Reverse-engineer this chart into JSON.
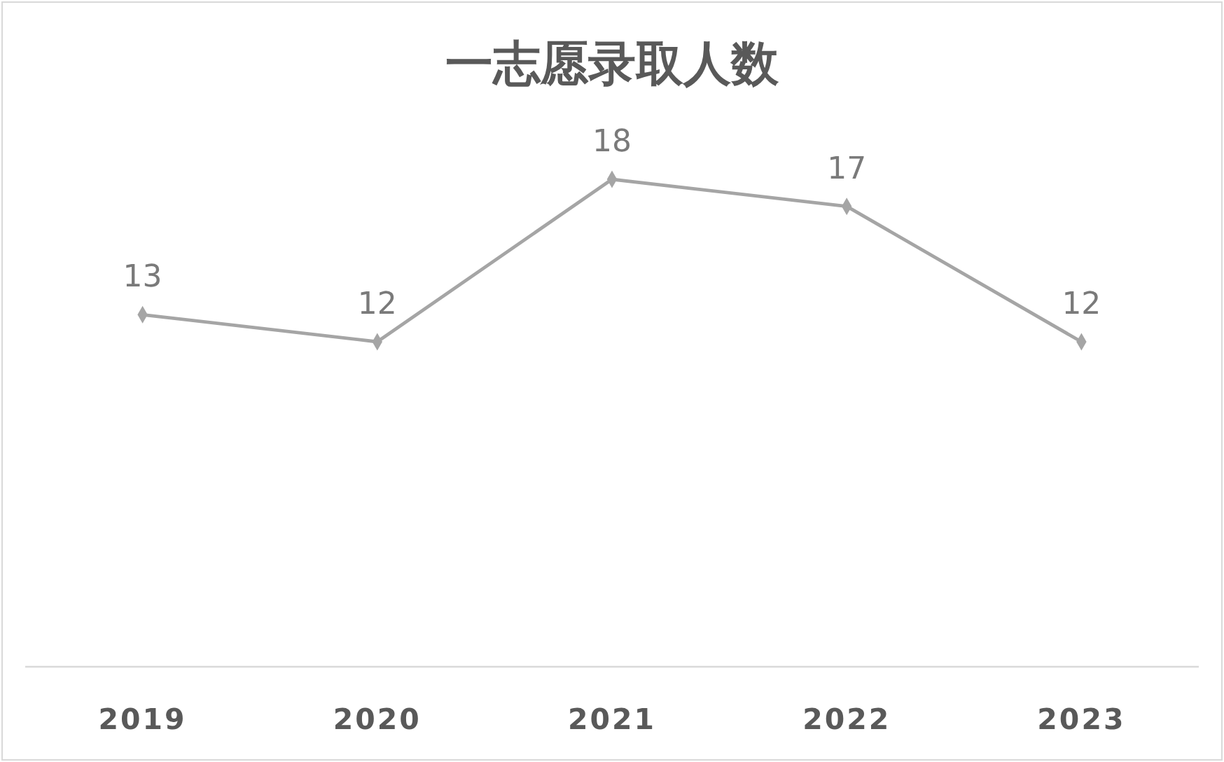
{
  "chart_data": {
    "type": "line",
    "title": "一志愿录取人数",
    "categories": [
      "2019",
      "2020",
      "2021",
      "2022",
      "2023"
    ],
    "series": [
      {
        "color": "#a5a5a5",
        "values": [
          13,
          12,
          18,
          17,
          12
        ]
      }
    ],
    "tick_labels": "x",
    "data_labels": true,
    "marker": "diamond",
    "line_style": "solid"
  }
}
